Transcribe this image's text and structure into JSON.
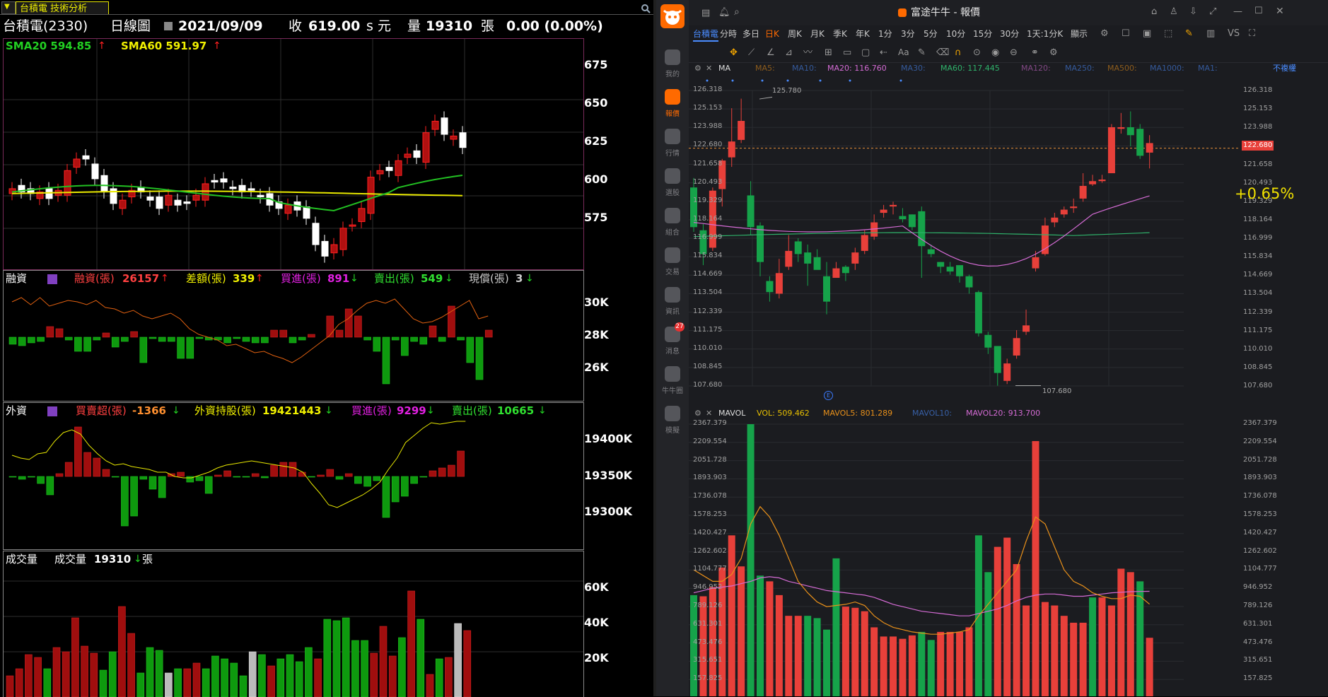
{
  "left": {
    "tab_label": "台積電 技術分析",
    "header": {
      "stock": "台積電(2330)",
      "period": "日線圖",
      "date": "2021/09/09",
      "close_label": "收",
      "close_value": "619.00",
      "close_unit": "s 元",
      "volume_label": "量",
      "volume_value": "19310",
      "volume_unit": "張",
      "change": "0.00 (0.00%)"
    },
    "price_panel": {
      "sma20": "SMA20 594.85",
      "sma60": "SMA60 591.97",
      "ticks": [
        "675",
        "650",
        "625",
        "600",
        "575"
      ]
    },
    "margin_panel": {
      "title": "融資",
      "items": [
        {
          "label": "融資(張)",
          "value": "26157"
        },
        {
          "label": "差額(張)",
          "value": "339"
        },
        {
          "label": "買進(張)",
          "value": "891"
        },
        {
          "label": "賣出(張)",
          "value": "549"
        },
        {
          "label": "現償(張)",
          "value": "3"
        }
      ],
      "ticks": [
        "30K",
        "28K",
        "26K"
      ]
    },
    "foreign_panel": {
      "title": "外資",
      "items": [
        {
          "label": "買賣超(張)",
          "value": "-1366"
        },
        {
          "label": "外資持股(張)",
          "value": "19421443"
        },
        {
          "label": "買進(張)",
          "value": "9299"
        },
        {
          "label": "賣出(張)",
          "value": "10665"
        }
      ],
      "ticks": [
        "19400K",
        "19350K",
        "19300K"
      ]
    },
    "volume_panel": {
      "title": "成交量",
      "label": "成交量",
      "value": "19310",
      "unit": "張",
      "ticks": [
        "60K",
        "40K",
        "20K"
      ]
    },
    "colors": {
      "up": "#b01010",
      "down": "#10a010",
      "sma20": "#22c022",
      "sma60": "#e8e800"
    }
  },
  "right": {
    "window_title": "富途牛牛 - 報價",
    "sidebar": [
      {
        "label": "我的",
        "icon": "user-icon"
      },
      {
        "label": "報價",
        "icon": "quote-icon"
      },
      {
        "label": "行情",
        "icon": "market-icon"
      },
      {
        "label": "選股",
        "icon": "filter-icon"
      },
      {
        "label": "組合",
        "icon": "pie-icon"
      },
      {
        "label": "交易",
        "icon": "trade-icon"
      },
      {
        "label": "資訊",
        "icon": "news-icon"
      },
      {
        "label": "消息",
        "icon": "message-icon",
        "badge": "27"
      },
      {
        "label": "牛牛圈",
        "icon": "community-icon"
      },
      {
        "label": "模擬",
        "icon": "gamepad-icon"
      }
    ],
    "period_tabs": [
      "台積電",
      "分時",
      "多日",
      "日K",
      "周K",
      "月K",
      "季K",
      "年K",
      "1分",
      "3分",
      "5分",
      "10分",
      "15分",
      "30分",
      "1天:1分K",
      "顯示"
    ],
    "active_tab": "日K",
    "ma_legend": {
      "type": "MA",
      "items": [
        "MA5:",
        "MA10:",
        "MA20: 116.760",
        "MA30:",
        "MA60: 117.445",
        "MA120:",
        "MA250:",
        "MA500:",
        "MA1000:",
        "MA1:"
      ],
      "adjust": "不複權"
    },
    "price_axis": [
      "126.318",
      "125.153",
      "123.988",
      "122.680",
      "121.658",
      "120.493",
      "119.329",
      "118.164",
      "116.999",
      "115.834",
      "114.669",
      "113.504",
      "112.339",
      "111.175",
      "110.010",
      "108.845",
      "107.680"
    ],
    "current_price": "122.680",
    "high_label": "125.780",
    "low_label": "107.680",
    "change_pct": "+0.65%",
    "vol_legend": {
      "type": "MAVOL",
      "vol": "VOL: 509.462",
      "mavol5": "MAVOL5: 801.289",
      "mavol10": "MAVOL10:",
      "mavol20": "MAVOL20: 913.700"
    },
    "vol_axis": [
      "2367.379",
      "2209.554",
      "2051.728",
      "1893.903",
      "1736.078",
      "1578.253",
      "1420.427",
      "1262.602",
      "1104.777",
      "946.952",
      "789.126",
      "631.301",
      "473.476",
      "315.651",
      "157.825"
    ],
    "colors": {
      "up": "#e8403a",
      "down": "#16a34a",
      "ma20": "#d46bd4",
      "ma60": "#2fb36b",
      "mavol5": "#e8901a",
      "mavol20": "#d46bd4",
      "accent": "#3b7bff"
    }
  }
}
